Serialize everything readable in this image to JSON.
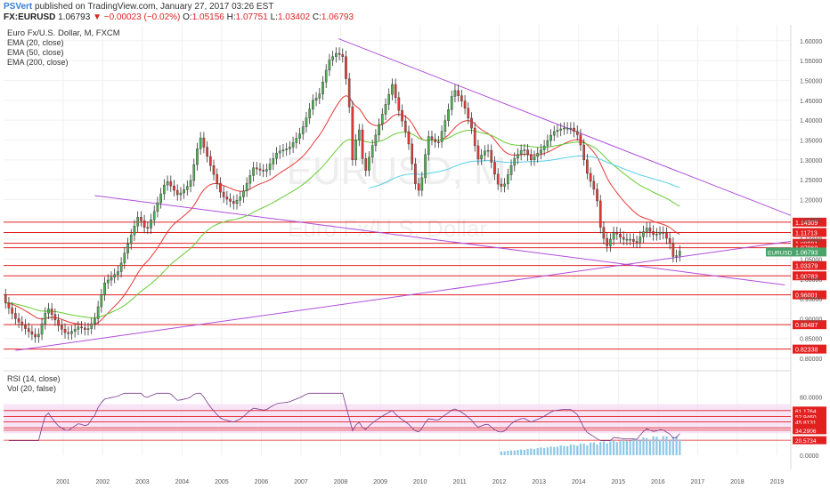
{
  "header": {
    "user": "PSVert",
    "publish_text": "published on TradingView.com, January 27, 2017 03:26 EST",
    "symbol": "FX:EURUSD",
    "price": "1.06793",
    "change": "−0.00023 (−0.02%)",
    "o_label": "O:",
    "o": "1.05156",
    "h_label": "H:",
    "h": "1.07751",
    "l_label": "L:",
    "l": "1.03402",
    "c_label": "C:",
    "c": "1.06793"
  },
  "legend": {
    "title": "Euro Fx/U.S. Dollar, M, FXCM",
    "ema20": "EMA (20, close)",
    "ema50": "EMA (50, close)",
    "ema200": "EMA (200, close)",
    "rsi": "RSI (14, close)",
    "vol": "Vol (20, false)"
  },
  "watermark": {
    "symbol": "EURUSD, M",
    "name": "Euro Fx/U.S. Dollar"
  },
  "colors": {
    "candle_up": "#4caf50",
    "candle_down": "#e53935",
    "ema20": "#e53935",
    "ema50": "#66cc33",
    "ema200": "#55d0e8",
    "trendline": "#b04fdc",
    "hline": "#e32020",
    "rsi": "#7a3a8a",
    "rsi_band": "#f3d9f3",
    "volume": "#8ec8e8"
  },
  "chart_data": {
    "type": "candlestick",
    "x_ticks": [
      "2001",
      "2002",
      "2003",
      "2004",
      "2005",
      "2006",
      "2007",
      "2008",
      "2009",
      "2010",
      "2011",
      "2012",
      "2013",
      "2014",
      "2015",
      "2016",
      "2017",
      "2018",
      "2019"
    ],
    "y_ticks": [
      "1.60000",
      "1.55000",
      "1.50000",
      "1.45000",
      "1.40000",
      "1.35000",
      "1.30000",
      "1.25000",
      "1.20000",
      "1.15000",
      "1.10000",
      "1.05000",
      "1.00000",
      "0.95000",
      "0.90000",
      "0.85000",
      "0.80000"
    ],
    "ylim": [
      0.78,
      1.64
    ],
    "price_lines": [
      "1.14309",
      "1.11713",
      "1.08981",
      "1.07868",
      "1.03379",
      "1.00783",
      "0.96001",
      "0.88487",
      "0.82338"
    ],
    "last_price_label": "EURUSD",
    "last_price": "1.06793",
    "close_series": [
      {
        "x": 2000.05,
        "y": 0.94
      },
      {
        "x": 2000.3,
        "y": 0.9
      },
      {
        "x": 2000.6,
        "y": 0.87
      },
      {
        "x": 2000.85,
        "y": 0.85
      },
      {
        "x": 2001.1,
        "y": 0.93
      },
      {
        "x": 2001.4,
        "y": 0.88
      },
      {
        "x": 2001.6,
        "y": 0.86
      },
      {
        "x": 2001.9,
        "y": 0.88
      },
      {
        "x": 2002.1,
        "y": 0.87
      },
      {
        "x": 2002.3,
        "y": 0.9
      },
      {
        "x": 2002.55,
        "y": 0.99
      },
      {
        "x": 2002.9,
        "y": 1.02
      },
      {
        "x": 2003.1,
        "y": 1.08
      },
      {
        "x": 2003.4,
        "y": 1.16
      },
      {
        "x": 2003.6,
        "y": 1.12
      },
      {
        "x": 2003.8,
        "y": 1.17
      },
      {
        "x": 2004.1,
        "y": 1.25
      },
      {
        "x": 2004.4,
        "y": 1.21
      },
      {
        "x": 2004.7,
        "y": 1.24
      },
      {
        "x": 2004.95,
        "y": 1.36
      },
      {
        "x": 2005.2,
        "y": 1.29
      },
      {
        "x": 2005.5,
        "y": 1.21
      },
      {
        "x": 2005.8,
        "y": 1.19
      },
      {
        "x": 2006.0,
        "y": 1.21
      },
      {
        "x": 2006.3,
        "y": 1.28
      },
      {
        "x": 2006.6,
        "y": 1.27
      },
      {
        "x": 2006.9,
        "y": 1.32
      },
      {
        "x": 2007.2,
        "y": 1.33
      },
      {
        "x": 2007.5,
        "y": 1.37
      },
      {
        "x": 2007.8,
        "y": 1.45
      },
      {
        "x": 2007.95,
        "y": 1.46
      },
      {
        "x": 2008.2,
        "y": 1.55
      },
      {
        "x": 2008.4,
        "y": 1.57
      },
      {
        "x": 2008.55,
        "y": 1.56
      },
      {
        "x": 2008.7,
        "y": 1.46
      },
      {
        "x": 2008.8,
        "y": 1.3
      },
      {
        "x": 2008.95,
        "y": 1.39
      },
      {
        "x": 2009.1,
        "y": 1.26
      },
      {
        "x": 2009.25,
        "y": 1.32
      },
      {
        "x": 2009.5,
        "y": 1.4
      },
      {
        "x": 2009.8,
        "y": 1.49
      },
      {
        "x": 2009.95,
        "y": 1.43
      },
      {
        "x": 2010.2,
        "y": 1.35
      },
      {
        "x": 2010.4,
        "y": 1.23
      },
      {
        "x": 2010.5,
        "y": 1.22
      },
      {
        "x": 2010.7,
        "y": 1.36
      },
      {
        "x": 2010.95,
        "y": 1.34
      },
      {
        "x": 2011.2,
        "y": 1.42
      },
      {
        "x": 2011.35,
        "y": 1.48
      },
      {
        "x": 2011.6,
        "y": 1.44
      },
      {
        "x": 2011.8,
        "y": 1.38
      },
      {
        "x": 2011.95,
        "y": 1.3
      },
      {
        "x": 2012.2,
        "y": 1.33
      },
      {
        "x": 2012.45,
        "y": 1.24
      },
      {
        "x": 2012.6,
        "y": 1.23
      },
      {
        "x": 2012.85,
        "y": 1.3
      },
      {
        "x": 2013.1,
        "y": 1.33
      },
      {
        "x": 2013.3,
        "y": 1.3
      },
      {
        "x": 2013.6,
        "y": 1.33
      },
      {
        "x": 2013.85,
        "y": 1.37
      },
      {
        "x": 2014.1,
        "y": 1.38
      },
      {
        "x": 2014.3,
        "y": 1.38
      },
      {
        "x": 2014.5,
        "y": 1.36
      },
      {
        "x": 2014.7,
        "y": 1.27
      },
      {
        "x": 2014.95,
        "y": 1.21
      },
      {
        "x": 2015.05,
        "y": 1.13
      },
      {
        "x": 2015.2,
        "y": 1.08
      },
      {
        "x": 2015.4,
        "y": 1.12
      },
      {
        "x": 2015.6,
        "y": 1.1
      },
      {
        "x": 2015.8,
        "y": 1.1
      },
      {
        "x": 2015.95,
        "y": 1.09
      },
      {
        "x": 2016.2,
        "y": 1.13
      },
      {
        "x": 2016.4,
        "y": 1.11
      },
      {
        "x": 2016.6,
        "y": 1.12
      },
      {
        "x": 2016.8,
        "y": 1.09
      },
      {
        "x": 2016.9,
        "y": 1.05
      },
      {
        "x": 2017.05,
        "y": 1.07
      }
    ],
    "rsi": {
      "y_ticks": [
        "80.0000",
        "60.0000",
        "40.0000",
        "20.0000",
        "0.0000"
      ],
      "ylim": [
        0,
        100
      ],
      "labels": [
        "61.1764",
        "52.9460",
        "45.8131",
        "37.5828",
        "34.2906",
        "20.5734"
      ]
    }
  }
}
